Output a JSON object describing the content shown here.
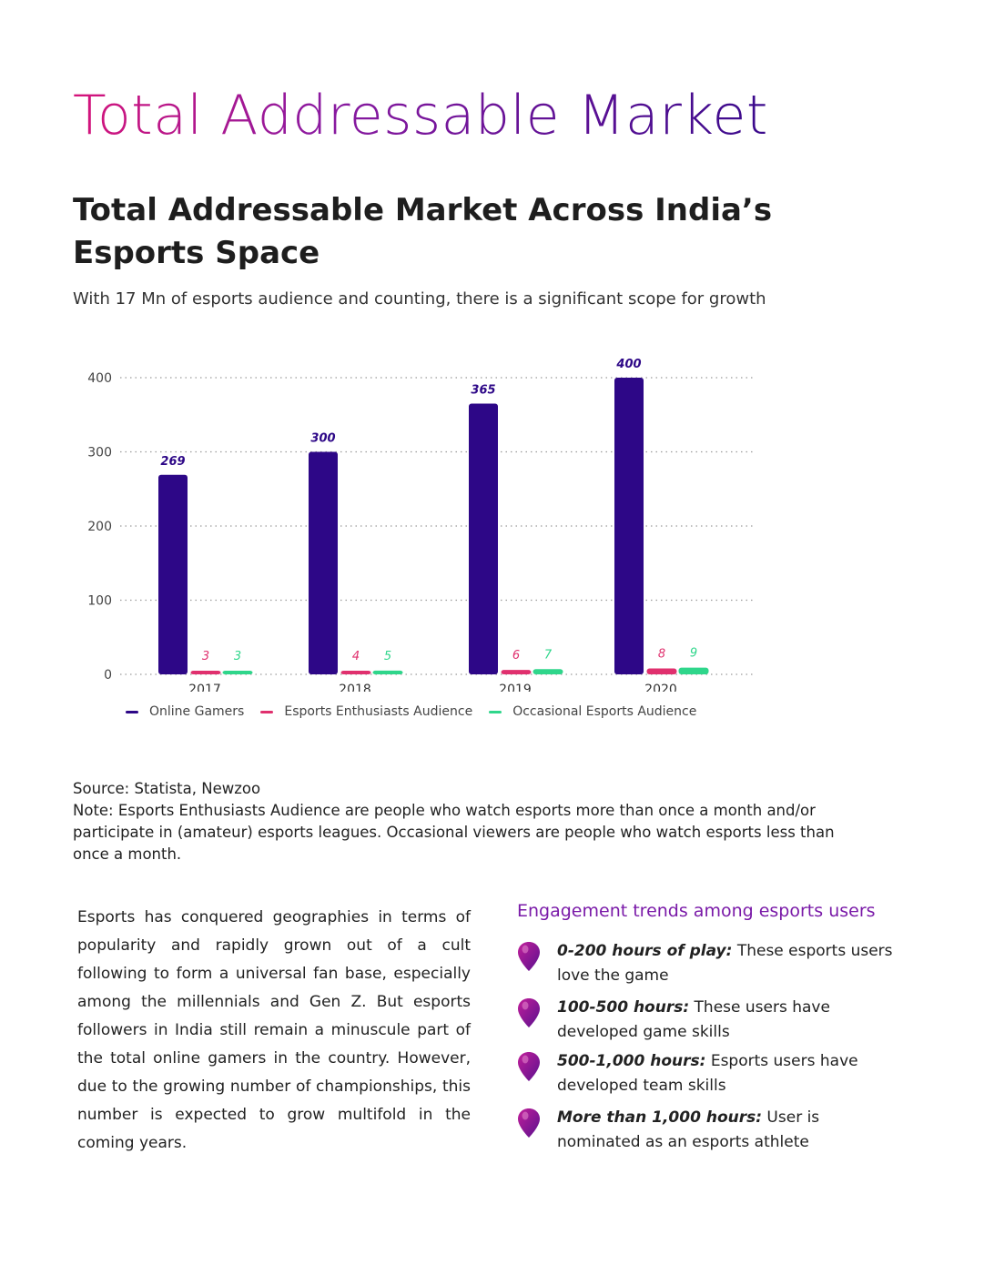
{
  "page": {
    "title": "Total Addressable Market",
    "heading": "Total Addressable Market Across India’s Esports Space",
    "subheading": "With 17 Mn of esports audience and counting, there is a significant scope for growth"
  },
  "colors": {
    "online_gamers": "#2d0787",
    "enthusiasts": "#e0306e",
    "occasional": "#2fd68b",
    "title_gradient_start": "#d6147a",
    "title_gradient_end": "#3a0a8c"
  },
  "chart_data": {
    "type": "bar",
    "categories": [
      "2017",
      "2018",
      "2019",
      "2020"
    ],
    "series": [
      {
        "name": "Online Gamers",
        "values": [
          269,
          300,
          365,
          400
        ]
      },
      {
        "name": "Esports Enthusiasts Audience",
        "values": [
          3,
          4,
          6,
          8
        ]
      },
      {
        "name": "Occasional Esports Audience",
        "values": [
          3,
          5,
          7,
          9
        ]
      }
    ],
    "y_ticks": [
      "0",
      "100",
      "200",
      "300",
      "400"
    ],
    "ylim": [
      0,
      400
    ],
    "grid": "dotted horizontal",
    "legend_position": "bottom"
  },
  "source": {
    "line": "Source: Statista, Newzoo",
    "note": "Note: Esports Enthusiasts Audience are people who watch esports more than once a month and/or participate in (amateur) esports leagues. Occasional viewers are people who watch esports less than once a month."
  },
  "body_text": "Esports has conquered geographies in terms of popularity and rapidly grown out of a cult following to form a universal fan base, especially among the millennials and Gen Z. But esports followers in India still remain a minuscule part of the total online gamers in the country. However, due to the growing number of championships, this number is expected to grow multifold in the coming years.",
  "engagement": {
    "title": "Engagement trends among esports users",
    "icon": "map-pin-icon",
    "items": [
      {
        "key": "0-200 hours of play:",
        "text": " These esports users love the game"
      },
      {
        "key": "100-500 hours:",
        "text": " These users have developed game skills"
      },
      {
        "key": "500-1,000 hours:",
        "text": " Esports users have developed team skills"
      },
      {
        "key": "More than 1,000 hours:",
        "text": " User is nominated as an esports athlete"
      }
    ]
  }
}
